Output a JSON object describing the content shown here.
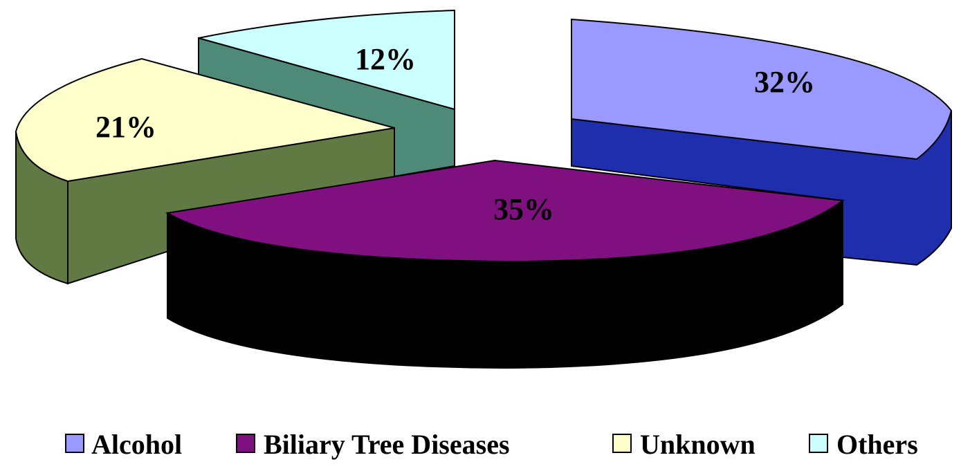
{
  "chart_data": {
    "type": "pie",
    "style": "3d-exploded",
    "title": "",
    "categories": [
      "Alcohol",
      "Biliary Tree Diseases",
      "Unknown",
      "Others"
    ],
    "values": [
      32,
      35,
      21,
      12
    ],
    "labels": [
      "32%",
      "35%",
      "21%",
      "12%"
    ],
    "colors": {
      "Alcohol": {
        "top": "#9999ff",
        "side": "#1f2ead"
      },
      "Biliary Tree Diseases": {
        "top": "#800f80",
        "side": "#000000"
      },
      "Unknown": {
        "top": "#ffffcc",
        "side": "#617a44"
      },
      "Others": {
        "top": "#ccffff",
        "side": "#4e8a78"
      }
    },
    "legend": {
      "position": "bottom"
    }
  }
}
